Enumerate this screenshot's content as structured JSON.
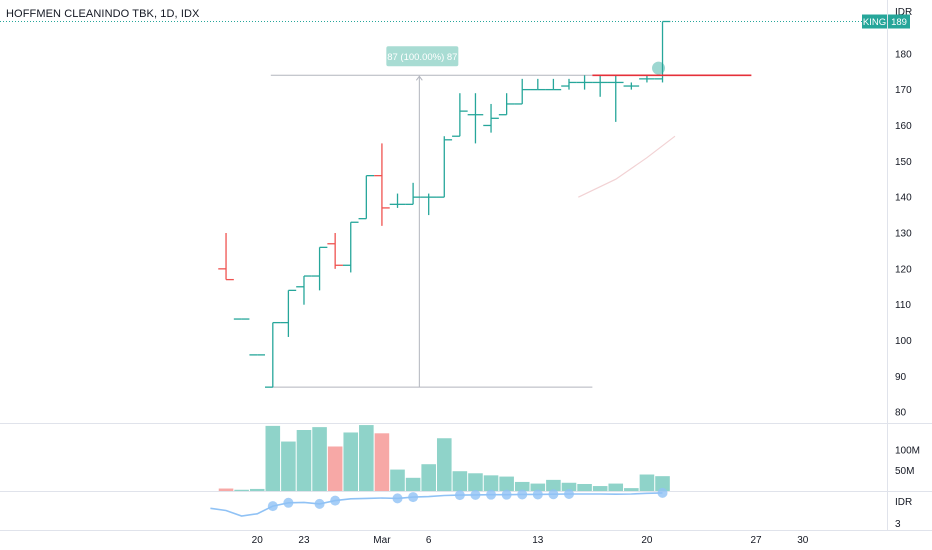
{
  "header": {
    "title": "HOFFMEN CLEANINDO TBK, 1D, IDX"
  },
  "colors": {
    "up": "#26a69a",
    "down": "#ef5350",
    "up_vol": "#8fd3c9",
    "down_vol": "#f7a8a6",
    "indicator": "#90c2f5",
    "resistance": "#e5303a",
    "ruler": "#b2b5be",
    "badge": "#26a69a",
    "measure_badge": "#a8dcd3"
  },
  "chart_data": {
    "type": "ohlc",
    "currency_label": "IDR",
    "y_ticks": [
      80,
      90,
      100,
      110,
      120,
      130,
      140,
      150,
      160,
      170,
      180
    ],
    "ylim": [
      77,
      195
    ],
    "x_ticks": [
      {
        "label": "20",
        "day": 2
      },
      {
        "label": "23",
        "day": 5
      },
      {
        "label": "Mar",
        "day": 10
      },
      {
        "label": "6",
        "day": 13
      },
      {
        "label": "13",
        "day": 20
      },
      {
        "label": "20",
        "day": 27
      },
      {
        "label": "27",
        "day": 34
      },
      {
        "label": "30",
        "day": 37
      }
    ],
    "xlim": [
      -14.5,
      42.4
    ],
    "bars": [
      {
        "d": 0,
        "o": 120,
        "h": 130,
        "l": 117,
        "c": 117,
        "v": 6
      },
      {
        "d": 1,
        "o": 106,
        "h": 106,
        "l": 106,
        "c": 106,
        "v": 3
      },
      {
        "d": 2,
        "o": 96,
        "h": 96,
        "l": 96,
        "c": 96,
        "v": 5
      },
      {
        "d": 3,
        "o": 87,
        "h": 105,
        "l": 87,
        "c": 105,
        "v": 158
      },
      {
        "d": 4,
        "o": 105,
        "h": 114,
        "l": 101,
        "c": 114,
        "v": 120
      },
      {
        "d": 5,
        "o": 115,
        "h": 118,
        "l": 110,
        "c": 118,
        "v": 148
      },
      {
        "d": 6,
        "o": 118,
        "h": 126,
        "l": 114,
        "c": 126,
        "v": 155
      },
      {
        "d": 7,
        "o": 127,
        "h": 130,
        "l": 120,
        "c": 121,
        "v": 108
      },
      {
        "d": 8,
        "o": 121,
        "h": 133,
        "l": 119,
        "c": 133,
        "v": 142
      },
      {
        "d": 9,
        "o": 134,
        "h": 146,
        "l": 134,
        "c": 146,
        "v": 160
      },
      {
        "d": 10,
        "o": 146,
        "h": 155,
        "l": 132,
        "c": 137,
        "v": 140
      },
      {
        "d": 11,
        "o": 138,
        "h": 141,
        "l": 137,
        "c": 138,
        "v": 52
      },
      {
        "d": 12,
        "o": 138,
        "h": 144,
        "l": 138,
        "c": 140,
        "v": 32
      },
      {
        "d": 13,
        "o": 140,
        "h": 141,
        "l": 135,
        "c": 140,
        "v": 65
      },
      {
        "d": 14,
        "o": 140,
        "h": 157,
        "l": 140,
        "c": 156,
        "v": 128
      },
      {
        "d": 15,
        "o": 157,
        "h": 169,
        "l": 157,
        "c": 164,
        "v": 48
      },
      {
        "d": 16,
        "o": 163,
        "h": 169,
        "l": 155,
        "c": 163,
        "v": 43
      },
      {
        "d": 17,
        "o": 160,
        "h": 166,
        "l": 158,
        "c": 162,
        "v": 38
      },
      {
        "d": 18,
        "o": 163,
        "h": 169,
        "l": 163,
        "c": 166,
        "v": 35
      },
      {
        "d": 19,
        "o": 166,
        "h": 173,
        "l": 166,
        "c": 170,
        "v": 22
      },
      {
        "d": 20,
        "o": 170,
        "h": 173,
        "l": 170,
        "c": 170,
        "v": 18
      },
      {
        "d": 21,
        "o": 170,
        "h": 173,
        "l": 170,
        "c": 170,
        "v": 27
      },
      {
        "d": 22,
        "o": 171,
        "h": 173,
        "l": 170,
        "c": 172,
        "v": 20
      },
      {
        "d": 23,
        "o": 172,
        "h": 174,
        "l": 170,
        "c": 172,
        "v": 17
      },
      {
        "d": 24,
        "o": 172,
        "h": 174,
        "l": 168,
        "c": 172,
        "v": 12
      },
      {
        "d": 25,
        "o": 172,
        "h": 174,
        "l": 161,
        "c": 172,
        "v": 18
      },
      {
        "d": 26,
        "o": 171,
        "h": 172,
        "l": 170,
        "c": 171,
        "v": 7
      },
      {
        "d": 27,
        "o": 173,
        "h": 174,
        "l": 172,
        "c": 173,
        "v": 40
      },
      {
        "d": 28,
        "o": 173,
        "h": 189,
        "l": 172,
        "c": 189,
        "v": 36
      }
    ],
    "volume_ticks": [
      {
        "label": "100M",
        "value": 100
      },
      {
        "label": "50M",
        "value": 50
      }
    ],
    "volume_max": 165,
    "indicator": {
      "label_top": "IDR",
      "label_bottom": "3",
      "points": [
        [
          -1,
          0.35
        ],
        [
          0,
          0.25
        ],
        [
          1,
          0.0
        ],
        [
          2,
          0.1
        ],
        [
          3,
          0.45
        ],
        [
          4,
          0.6
        ],
        [
          5,
          0.62
        ],
        [
          6,
          0.55
        ],
        [
          7,
          0.7
        ],
        [
          8,
          0.78
        ],
        [
          9,
          0.8
        ],
        [
          10,
          0.82
        ],
        [
          11,
          0.8
        ],
        [
          12,
          0.86
        ],
        [
          13,
          0.88
        ],
        [
          14,
          0.93
        ],
        [
          15,
          0.95
        ],
        [
          16,
          0.96
        ],
        [
          17,
          0.97
        ],
        [
          18,
          0.97
        ],
        [
          19,
          0.98
        ],
        [
          20,
          0.98
        ],
        [
          21,
          0.99
        ],
        [
          22,
          1.0
        ],
        [
          23,
          1.0
        ],
        [
          24,
          1.0
        ],
        [
          25,
          0.99
        ],
        [
          26,
          1.0
        ],
        [
          27,
          1.03
        ],
        [
          28,
          1.05
        ]
      ],
      "markers": [
        3,
        4,
        6,
        7,
        11,
        12,
        15,
        16,
        17,
        18,
        19,
        20,
        21,
        22,
        28
      ]
    },
    "resistance": {
      "value": 174,
      "from_day": 23.5,
      "to_day": 33.7
    },
    "last_price": {
      "label": "KING",
      "value": "189",
      "numeric": 189
    },
    "measure": {
      "label": "87 (100.00%) 87",
      "from_value": 87,
      "to_value": 174,
      "x_day": 12.4,
      "from_day": 3,
      "to_day": 23.5
    },
    "faint_curve": [
      [
        22.6,
        140
      ],
      [
        25,
        145
      ],
      [
        27,
        151
      ],
      [
        28.8,
        157
      ]
    ]
  }
}
